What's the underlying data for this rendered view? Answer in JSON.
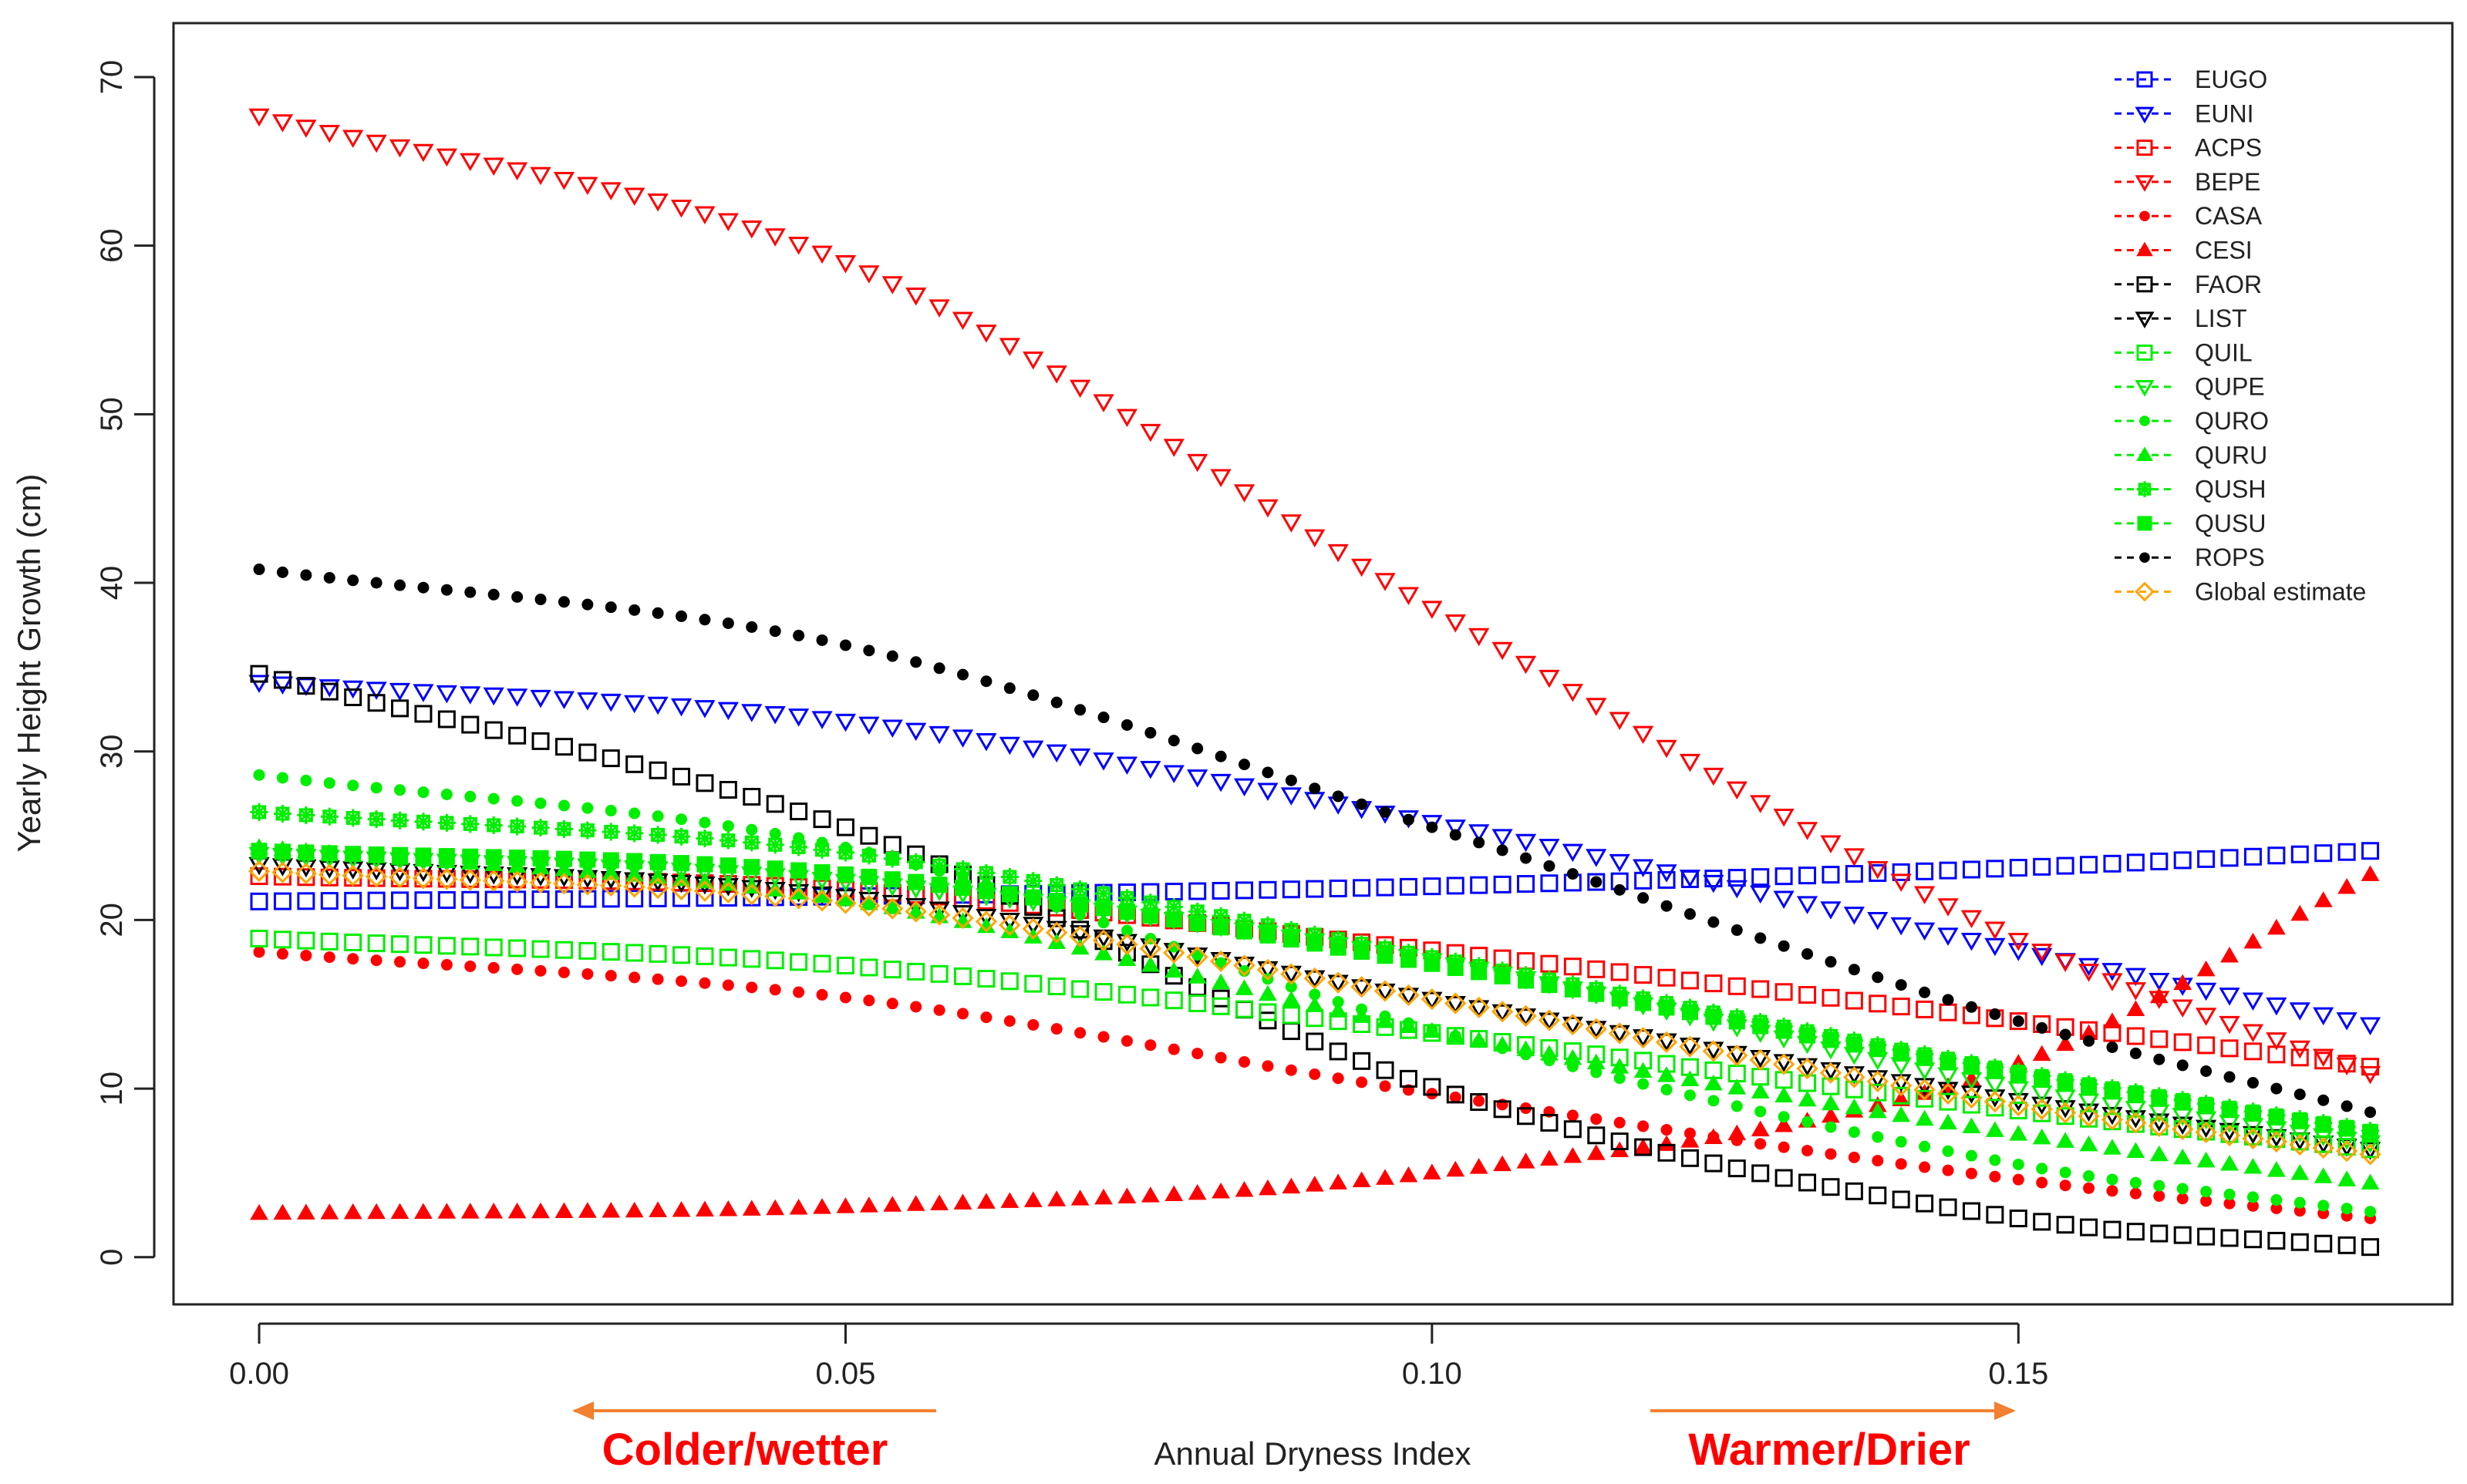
{
  "chart_data": {
    "type": "scatter",
    "title": "",
    "xlabel": "Annual Dryness Index",
    "ylabel": "Yearly Height Growth (cm)",
    "xlim": [
      -0.0073,
      0.187
    ],
    "ylim": [
      -2.8,
      73.2
    ],
    "xticks": [
      0.0,
      0.05,
      0.1,
      0.15
    ],
    "xtick_labels": [
      "0.00",
      "0.05",
      "0.10",
      "0.15"
    ],
    "yticks": [
      0,
      10,
      20,
      30,
      40,
      50,
      60,
      70
    ],
    "ytick_labels": [
      "0",
      "10",
      "20",
      "30",
      "40",
      "50",
      "60",
      "70"
    ],
    "legend_position": "top-right",
    "x_range": [
      0.0,
      0.18
    ],
    "n_points": 91,
    "series": [
      {
        "name": "EUGO",
        "color": "#0000ff",
        "marker": "square-open",
        "anchors": [
          [
            0.0,
            21.1
          ],
          [
            0.05,
            21.4
          ],
          [
            0.1,
            22.0
          ],
          [
            0.15,
            23.1
          ],
          [
            0.18,
            24.1
          ]
        ]
      },
      {
        "name": "EUNI",
        "color": "#0000ff",
        "marker": "triangle-down-open",
        "anchors": [
          [
            0.0,
            34.1
          ],
          [
            0.05,
            31.8
          ],
          [
            0.1,
            25.8
          ],
          [
            0.15,
            18.2
          ],
          [
            0.18,
            13.8
          ]
        ]
      },
      {
        "name": "ACPS",
        "color": "#ff0000",
        "marker": "square-open",
        "anchors": [
          [
            0.0,
            22.6
          ],
          [
            0.05,
            21.8
          ],
          [
            0.1,
            18.2
          ],
          [
            0.15,
            14.0
          ],
          [
            0.18,
            11.3
          ]
        ]
      },
      {
        "name": "BEPE",
        "color": "#ff0000",
        "marker": "triangle-down-open",
        "anchors": [
          [
            0.0,
            67.7
          ],
          [
            0.05,
            59.0
          ],
          [
            0.1,
            38.5
          ],
          [
            0.15,
            18.8
          ],
          [
            0.18,
            10.9
          ]
        ]
      },
      {
        "name": "CASA",
        "color": "#ff0000",
        "marker": "dot",
        "anchors": [
          [
            0.0,
            18.1
          ],
          [
            0.05,
            15.4
          ],
          [
            0.1,
            9.7
          ],
          [
            0.15,
            4.6
          ],
          [
            0.18,
            2.3
          ]
        ]
      },
      {
        "name": "CESI",
        "color": "#ff0000",
        "marker": "triangle-up",
        "anchors": [
          [
            0.0,
            2.6
          ],
          [
            0.05,
            3.0
          ],
          [
            0.1,
            5.0
          ],
          [
            0.15,
            11.5
          ],
          [
            0.18,
            22.7
          ]
        ]
      },
      {
        "name": "FAOR",
        "color": "#000000",
        "marker": "square-open",
        "anchors": [
          [
            0.0,
            34.6
          ],
          [
            0.05,
            25.5
          ],
          [
            0.1,
            10.1
          ],
          [
            0.15,
            2.3
          ],
          [
            0.18,
            0.6
          ]
        ]
      },
      {
        "name": "LIST",
        "color": "#000000",
        "marker": "triangle-down-open",
        "anchors": [
          [
            0.0,
            23.3
          ],
          [
            0.05,
            21.4
          ],
          [
            0.1,
            15.3
          ],
          [
            0.15,
            9.3
          ],
          [
            0.18,
            6.4
          ]
        ]
      },
      {
        "name": "QUIL",
        "color": "#00ee00",
        "marker": "square-open",
        "anchors": [
          [
            0.0,
            18.9
          ],
          [
            0.05,
            17.3
          ],
          [
            0.1,
            13.3
          ],
          [
            0.15,
            8.7
          ],
          [
            0.18,
            6.4
          ]
        ]
      },
      {
        "name": "QUPE",
        "color": "#00ee00",
        "marker": "triangle-down-open",
        "anchors": [
          [
            0.0,
            23.9
          ],
          [
            0.05,
            22.3
          ],
          [
            0.1,
            17.6
          ],
          [
            0.15,
            10.0
          ],
          [
            0.18,
            6.8
          ]
        ]
      },
      {
        "name": "QURO",
        "color": "#00ee00",
        "marker": "dot",
        "anchors": [
          [
            0.0,
            28.6
          ],
          [
            0.05,
            24.3
          ],
          [
            0.1,
            13.5
          ],
          [
            0.15,
            5.5
          ],
          [
            0.18,
            2.7
          ]
        ]
      },
      {
        "name": "QURU",
        "color": "#00ee00",
        "marker": "triangle-up",
        "anchors": [
          [
            0.0,
            24.3
          ],
          [
            0.05,
            21.2
          ],
          [
            0.1,
            13.4
          ],
          [
            0.15,
            7.3
          ],
          [
            0.18,
            4.4
          ]
        ]
      },
      {
        "name": "QUSH",
        "color": "#00ee00",
        "marker": "star",
        "anchors": [
          [
            0.0,
            26.4
          ],
          [
            0.05,
            24.0
          ],
          [
            0.1,
            17.8
          ],
          [
            0.15,
            11.0
          ],
          [
            0.18,
            7.5
          ]
        ]
      },
      {
        "name": "QUSU",
        "color": "#00ee00",
        "marker": "square-filled",
        "anchors": [
          [
            0.0,
            24.1
          ],
          [
            0.05,
            22.7
          ],
          [
            0.1,
            17.4
          ],
          [
            0.15,
            10.8
          ],
          [
            0.18,
            7.4
          ]
        ]
      },
      {
        "name": "ROPS",
        "color": "#000000",
        "marker": "dot",
        "anchors": [
          [
            0.0,
            40.8
          ],
          [
            0.05,
            36.3
          ],
          [
            0.1,
            25.5
          ],
          [
            0.15,
            14.0
          ],
          [
            0.18,
            8.6
          ]
        ]
      },
      {
        "name": "Global estimate",
        "color": "#ffa500",
        "marker": "diamond-open",
        "anchors": [
          [
            0.0,
            22.9
          ],
          [
            0.05,
            21.0
          ],
          [
            0.1,
            15.3
          ],
          [
            0.15,
            9.0
          ],
          [
            0.18,
            6.1
          ]
        ]
      }
    ],
    "annotations": [
      {
        "text": "Colder/wetter",
        "color": "#ff0000",
        "arrow_color": "#f28030",
        "direction": "left",
        "from_x": 0.058,
        "to_x": 0.027
      },
      {
        "text": "Warmer/Drier",
        "color": "#ff0000",
        "arrow_color": "#f28030",
        "direction": "right",
        "from_x": 0.119,
        "to_x": 0.15
      }
    ]
  }
}
